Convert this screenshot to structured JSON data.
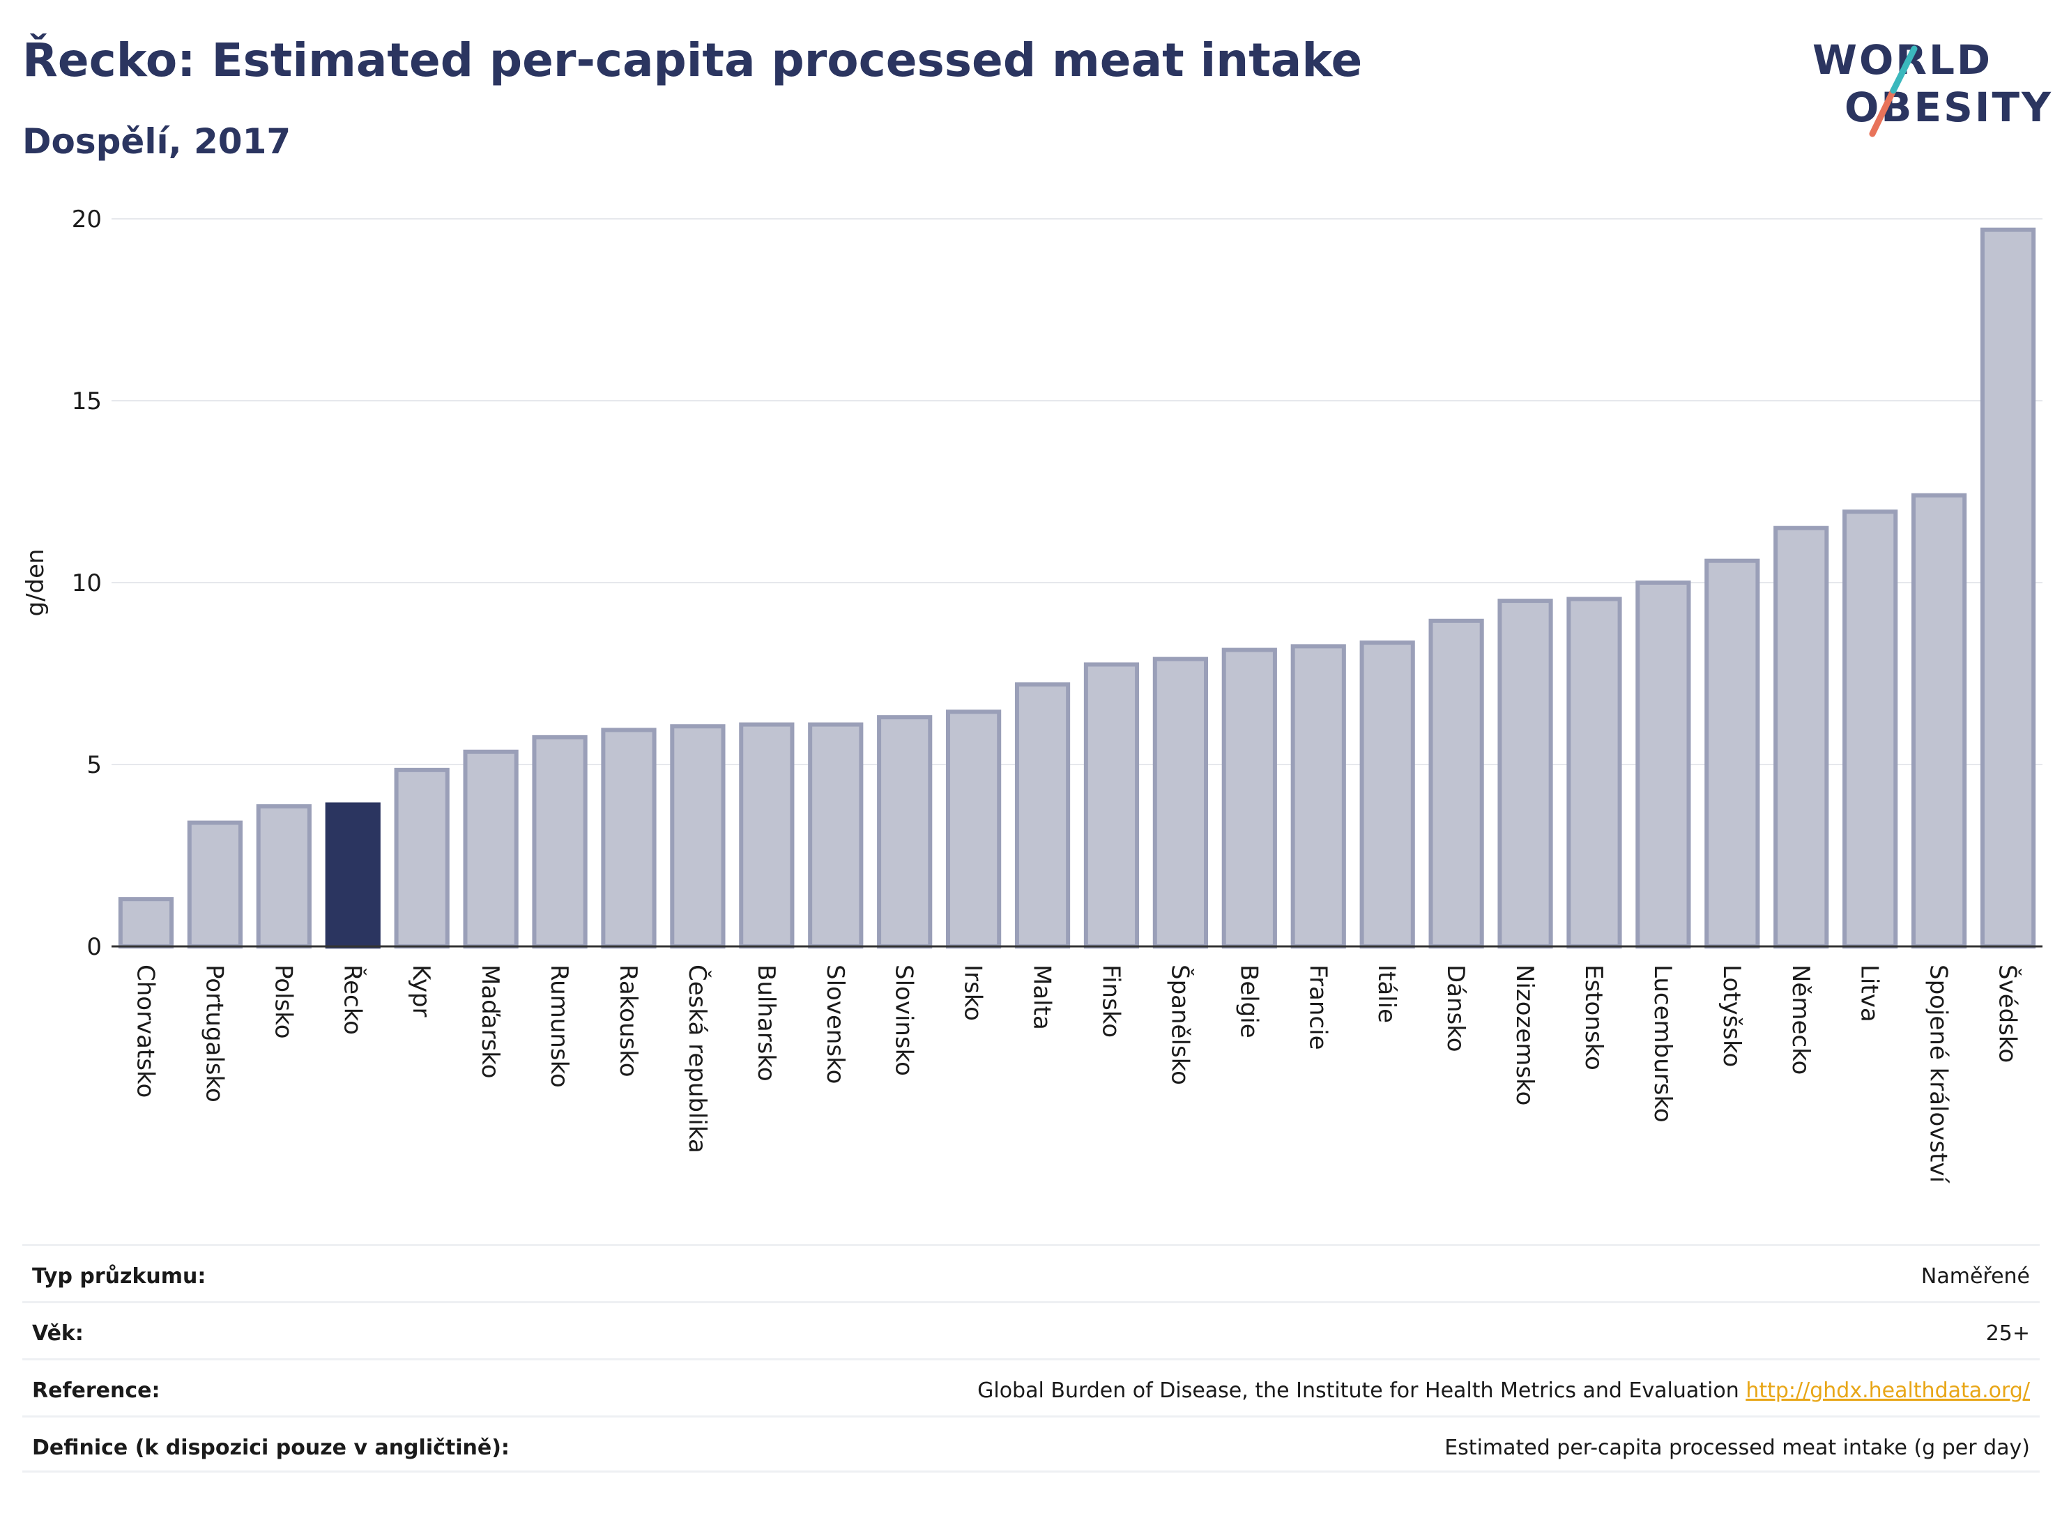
{
  "header": {
    "title": "Řecko: Estimated per-capita processed meat intake",
    "subtitle": "Dospělí, 2017"
  },
  "logo": {
    "line1": "WORLD",
    "line2": "OBESITY"
  },
  "colors": {
    "bar": "#c0c3d1",
    "bar_border": "#9a9fb8",
    "highlight": "#2b3560",
    "title": "#2b3560",
    "link": "#e8a617"
  },
  "chart_data": {
    "type": "bar",
    "title": "Řecko: Estimated per-capita processed meat intake",
    "subtitle": "Dospělí, 2017",
    "ylabel": "g/den",
    "xlabel": "",
    "ylim": [
      0,
      20
    ],
    "yticks": [
      0,
      5,
      10,
      15,
      20
    ],
    "highlight": "Řecko",
    "grid": true,
    "categories": [
      "Chorvatsko",
      "Portugalsko",
      "Polsko",
      "Řecko",
      "Kypr",
      "Maďarsko",
      "Rumunsko",
      "Rakousko",
      "Česká republika",
      "Bulharsko",
      "Slovensko",
      "Slovinsko",
      "Irsko",
      "Malta",
      "Finsko",
      "Španělsko",
      "Belgie",
      "Francie",
      "Itálie",
      "Dánsko",
      "Nizozemsko",
      "Estonsko",
      "Lucembursko",
      "Lotyšsko",
      "Německo",
      "Litva",
      "Spojené království",
      "Švédsko"
    ],
    "values": [
      1.3,
      3.4,
      3.85,
      3.9,
      4.85,
      5.35,
      5.75,
      5.95,
      6.05,
      6.1,
      6.1,
      6.3,
      6.45,
      7.2,
      7.75,
      7.9,
      8.15,
      8.25,
      8.35,
      8.95,
      9.5,
      9.55,
      10.0,
      10.6,
      11.5,
      11.95,
      12.4,
      19.7
    ]
  },
  "info": {
    "rows": [
      {
        "key": "Typ průzkumu:",
        "value": "Naměřené"
      },
      {
        "key": "Věk:",
        "value": "25+"
      },
      {
        "key": "Reference:",
        "value": "Global Burden of Disease, the Institute for Health Metrics and Evaluation",
        "link": "http://ghdx.healthdata.org/"
      },
      {
        "key": "Definice (k dispozici pouze v angličtině):",
        "value": "Estimated per-capita processed meat intake (g per day)"
      }
    ]
  }
}
